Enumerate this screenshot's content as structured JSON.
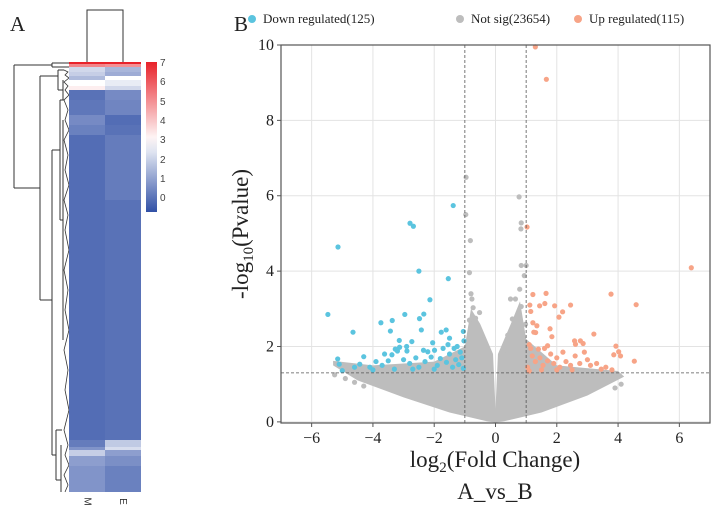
{
  "panel_a": {
    "label": "A",
    "columns": [
      "M",
      "E"
    ],
    "colorbar_ticks": [
      "7",
      "6",
      "5",
      "4",
      "3",
      "2",
      "1",
      "0"
    ],
    "rows": [
      {
        "genes": 2,
        "M": 7.0,
        "E": 7.0
      },
      {
        "genes": 3,
        "M": 5.2,
        "E": 5.0
      },
      {
        "genes": 5,
        "M": 2.2,
        "E": 1.5
      },
      {
        "genes": 4,
        "M": 2.0,
        "E": 1.3
      },
      {
        "genes": 4,
        "M": 1.6,
        "E": 3.0
      },
      {
        "genes": 6,
        "M": 3.0,
        "E": 2.6
      },
      {
        "genes": 4,
        "M": 3.3,
        "E": 2.2
      },
      {
        "genes": 10,
        "M": 0.1,
        "E": 0.6
      },
      {
        "genes": 15,
        "M": 0.2,
        "E": 0.5
      },
      {
        "genes": 10,
        "M": 0.6,
        "E": 0.0
      },
      {
        "genes": 10,
        "M": 0.4,
        "E": 0.1
      },
      {
        "genes": 65,
        "M": 0.0,
        "E": 0.3
      },
      {
        "genes": 240,
        "M": 0.0,
        "E": 0.1
      },
      {
        "genes": 7,
        "M": 0.3,
        "E": 1.9
      },
      {
        "genes": 3,
        "M": 0.8,
        "E": 2.3
      },
      {
        "genes": 6,
        "M": 2.0,
        "E": 1.0
      },
      {
        "genes": 10,
        "M": 1.0,
        "E": 0.7
      },
      {
        "genes": 26,
        "M": 0.8,
        "E": 0.4
      }
    ],
    "colorscale": {
      "min": -0.6,
      "mid": 3,
      "max": 7,
      "low": "#3150a6",
      "midcolor": "#ffffff",
      "high": "#e8222a"
    }
  },
  "chart_data": {
    "type": "scatter",
    "panel_label": "B",
    "title": "",
    "xlabel_main": "log",
    "xlabel_sub": "2",
    "xlabel_rest": "(Fold Change)",
    "xlabel_line2": "A_vs_B",
    "ylabel_pre": "-log",
    "ylabel_sub": "10",
    "ylabel_rest": "(Pvalue)",
    "xlim": [
      -7,
      7
    ],
    "ylim": [
      -0.03,
      10
    ],
    "xticks": [
      -6,
      -4,
      -2,
      0,
      2,
      4,
      6
    ],
    "xtick_labels": [
      "−6",
      "−4",
      "−2",
      "0",
      "2",
      "4",
      "6"
    ],
    "yticks": [
      0,
      2,
      4,
      6,
      8,
      10
    ],
    "ytick_labels": [
      "0",
      "2",
      "4",
      "6",
      "8",
      "10"
    ],
    "grid": true,
    "thresholds": {
      "log2fc": [
        -1,
        1
      ],
      "neg_log10_p": 1.3
    },
    "legend_position": "top",
    "legend": [
      {
        "label": "Down regulated(125)",
        "color": "#5bc4df"
      },
      {
        "label": "Not sig(23654)",
        "color": "#bdbdbd"
      },
      {
        "label": "Up regulated(115)",
        "color": "#f7a487"
      }
    ],
    "series": [
      {
        "name": "Down regulated",
        "color": "#5bc4df",
        "points": [
          [
            -1.38,
            5.74
          ],
          [
            -2.79,
            5.27
          ],
          [
            -2.68,
            5.19
          ],
          [
            -5.14,
            4.64
          ],
          [
            -2.5,
            4.0
          ],
          [
            -1.54,
            3.8
          ],
          [
            -2.14,
            3.24
          ],
          [
            -5.47,
            2.85
          ],
          [
            -2.96,
            2.85
          ],
          [
            -2.34,
            2.86
          ],
          [
            -2.48,
            2.74
          ],
          [
            -3.37,
            2.69
          ],
          [
            -3.74,
            2.63
          ],
          [
            -4.65,
            2.38
          ],
          [
            -3.43,
            2.41
          ],
          [
            -2.42,
            2.44
          ],
          [
            -1.77,
            2.38
          ],
          [
            -1.61,
            2.44
          ],
          [
            -1.5,
            2.22
          ],
          [
            -1.05,
            2.4
          ],
          [
            -1.03,
            2.15
          ],
          [
            -3.14,
            2.16
          ],
          [
            -2.73,
            2.13
          ],
          [
            -3.27,
            1.93
          ],
          [
            -3.2,
            1.88
          ],
          [
            -3.13,
            1.98
          ],
          [
            -2.89,
            1.88
          ],
          [
            -2.35,
            1.9
          ],
          [
            -2.21,
            1.86
          ],
          [
            -1.99,
            1.9
          ],
          [
            -1.71,
            1.95
          ],
          [
            -3.62,
            1.8
          ],
          [
            -3.38,
            1.78
          ],
          [
            -4.3,
            1.73
          ],
          [
            -5.15,
            1.67
          ],
          [
            -5.1,
            1.53
          ],
          [
            -4.43,
            1.53
          ],
          [
            -3.9,
            1.6
          ],
          [
            -3.7,
            1.5
          ],
          [
            -3.5,
            1.62
          ],
          [
            -3.0,
            1.65
          ],
          [
            -2.8,
            1.55
          ],
          [
            -2.6,
            1.7
          ],
          [
            -2.5,
            1.45
          ],
          [
            -2.3,
            1.6
          ],
          [
            -2.1,
            1.72
          ],
          [
            -1.9,
            1.5
          ],
          [
            -1.8,
            1.68
          ],
          [
            -1.6,
            1.58
          ],
          [
            -1.5,
            1.8
          ],
          [
            -1.4,
            1.45
          ],
          [
            -1.3,
            1.65
          ],
          [
            -1.2,
            1.52
          ],
          [
            -1.15,
            1.85
          ],
          [
            -1.1,
            1.7
          ],
          [
            -1.05,
            1.42
          ],
          [
            -2.0,
            1.4
          ],
          [
            -2.7,
            1.4
          ],
          [
            -3.3,
            1.4
          ],
          [
            -4.0,
            1.38
          ],
          [
            -1.35,
            1.95
          ],
          [
            -1.25,
            2.0
          ],
          [
            -1.55,
            2.05
          ],
          [
            -2.05,
            2.1
          ],
          [
            -2.9,
            2.0
          ],
          [
            -4.1,
            1.45
          ],
          [
            -4.6,
            1.45
          ],
          [
            -5.0,
            1.36
          ]
        ]
      },
      {
        "name": "Not sig",
        "color": "#bdbdbd",
        "points": [
          [
            -0.96,
            6.49
          ],
          [
            -0.97,
            5.5
          ],
          [
            -0.82,
            4.81
          ],
          [
            -0.85,
            3.96
          ],
          [
            -0.8,
            3.4
          ],
          [
            -0.77,
            3.26
          ],
          [
            -0.73,
            3.03
          ],
          [
            -0.52,
            2.9
          ],
          [
            -0.85,
            2.7
          ],
          [
            -0.65,
            2.75
          ],
          [
            0.77,
            5.97
          ],
          [
            0.84,
            5.28
          ],
          [
            0.83,
            5.12
          ],
          [
            0.84,
            4.15
          ],
          [
            1.0,
            4.15
          ],
          [
            0.94,
            3.88
          ],
          [
            0.79,
            3.52
          ],
          [
            0.49,
            3.26
          ],
          [
            0.65,
            3.26
          ],
          [
            0.84,
            3.06
          ],
          [
            0.55,
            2.73
          ],
          [
            0.98,
            2.59
          ],
          [
            -5.25,
            1.25
          ],
          [
            -4.9,
            1.15
          ],
          [
            -4.6,
            1.05
          ],
          [
            -4.3,
            0.95
          ],
          [
            4.1,
            1.0
          ],
          [
            3.9,
            0.9
          ],
          [
            -0.5,
            2.2
          ],
          [
            0.4,
            2.3
          ],
          [
            -0.3,
            2.0
          ],
          [
            0.3,
            1.9
          ]
        ],
        "envelope": [
          [
            -5.3,
            1.62
          ],
          [
            -4,
            1.5
          ],
          [
            -2,
            1.6
          ],
          [
            -1,
            2.0
          ],
          [
            -0.8,
            3.0
          ],
          [
            -0.5,
            2.6
          ],
          [
            -0.08,
            1.8
          ],
          [
            0,
            0.35
          ],
          [
            0.08,
            1.8
          ],
          [
            0.5,
            2.6
          ],
          [
            0.8,
            3.2
          ],
          [
            1,
            2.2
          ],
          [
            2,
            1.5
          ],
          [
            4,
            1.35
          ],
          [
            4.2,
            1.2
          ],
          [
            3,
            0.7
          ],
          [
            1.5,
            0.25
          ],
          [
            0.3,
            0.02
          ],
          [
            0,
            -0.02
          ],
          [
            -0.3,
            0.02
          ],
          [
            -1.5,
            0.25
          ],
          [
            -3,
            0.65
          ],
          [
            -4.5,
            1.1
          ],
          [
            -5.3,
            1.5
          ]
        ]
      },
      {
        "name": "Up regulated",
        "color": "#f7a487",
        "points": [
          [
            1.3,
            9.95
          ],
          [
            1.66,
            9.09
          ],
          [
            1.03,
            5.17
          ],
          [
            6.39,
            4.09
          ],
          [
            3.77,
            3.39
          ],
          [
            4.59,
            3.11
          ],
          [
            1.22,
            3.38
          ],
          [
            1.65,
            3.41
          ],
          [
            1.12,
            3.1
          ],
          [
            1.44,
            3.08
          ],
          [
            1.61,
            3.14
          ],
          [
            1.93,
            3.08
          ],
          [
            2.45,
            3.1
          ],
          [
            1.15,
            2.93
          ],
          [
            2.19,
            2.92
          ],
          [
            2.07,
            2.78
          ],
          [
            1.22,
            2.63
          ],
          [
            1.35,
            2.55
          ],
          [
            1.25,
            2.38
          ],
          [
            1.31,
            2.37
          ],
          [
            1.78,
            2.47
          ],
          [
            1.84,
            2.26
          ],
          [
            3.21,
            2.33
          ],
          [
            2.58,
            2.15
          ],
          [
            2.77,
            2.15
          ],
          [
            2.86,
            2.08
          ],
          [
            2.61,
            2.06
          ],
          [
            3.93,
            2.01
          ],
          [
            1.1,
            2.05
          ],
          [
            1.15,
            1.95
          ],
          [
            1.4,
            1.93
          ],
          [
            1.6,
            1.95
          ],
          [
            1.7,
            2.02
          ],
          [
            4.02,
            1.86
          ],
          [
            4.08,
            1.75
          ],
          [
            3.86,
            1.78
          ],
          [
            4.53,
            1.61
          ],
          [
            1.2,
            1.75
          ],
          [
            1.3,
            1.6
          ],
          [
            1.45,
            1.7
          ],
          [
            1.55,
            1.5
          ],
          [
            1.7,
            1.62
          ],
          [
            1.8,
            1.8
          ],
          [
            1.9,
            1.55
          ],
          [
            2.0,
            1.7
          ],
          [
            2.1,
            1.45
          ],
          [
            2.2,
            1.85
          ],
          [
            2.3,
            1.6
          ],
          [
            2.45,
            1.5
          ],
          [
            2.6,
            1.75
          ],
          [
            2.75,
            1.55
          ],
          [
            2.9,
            1.85
          ],
          [
            3.0,
            1.65
          ],
          [
            3.1,
            1.5
          ],
          [
            3.3,
            1.55
          ],
          [
            3.45,
            1.4
          ],
          [
            3.6,
            1.45
          ],
          [
            1.05,
            1.45
          ],
          [
            1.1,
            1.35
          ],
          [
            2.5,
            1.38
          ],
          [
            3.8,
            1.38
          ],
          [
            1.5,
            1.38
          ],
          [
            2.0,
            1.38
          ]
        ]
      }
    ]
  }
}
